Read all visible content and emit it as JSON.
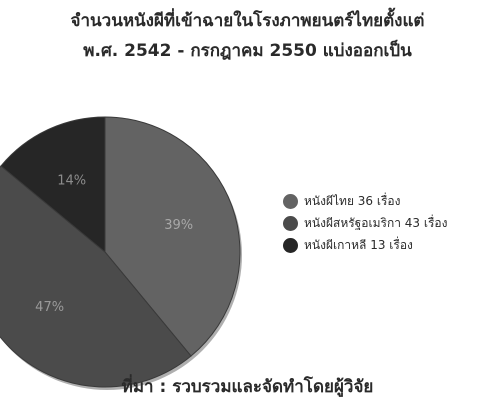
{
  "chart_data": {
    "type": "pie",
    "title_lines": [
      "จำนวนหนังผีที่เข้าฉายในโรงภาพยนตร์ไทยตั้งแต่",
      "พ.ศ. 2542 - กรกฎาคม 2550 แบ่งออกเป็น"
    ],
    "slices": [
      {
        "label": "หนังผีไทย 36 เรื่อง",
        "value": 39,
        "value_label": "39%",
        "color": "#636363",
        "label_color": "#a8a8a8"
      },
      {
        "label": "หนังผีสหรัฐอเมริกา 43 เรื่อง",
        "value": 47,
        "value_label": "47%",
        "color": "#4b4b4b",
        "label_color": "#9a9a9a"
      },
      {
        "label": "หนังผีเกาหลี 13 เรื่อง",
        "value": 14,
        "value_label": "14%",
        "color": "#262626",
        "label_color": "#8c8c8c"
      }
    ],
    "legend_position": "right",
    "source": "ที่มา : รวบรวมและจัดทำโดยผู้วิจัย"
  }
}
